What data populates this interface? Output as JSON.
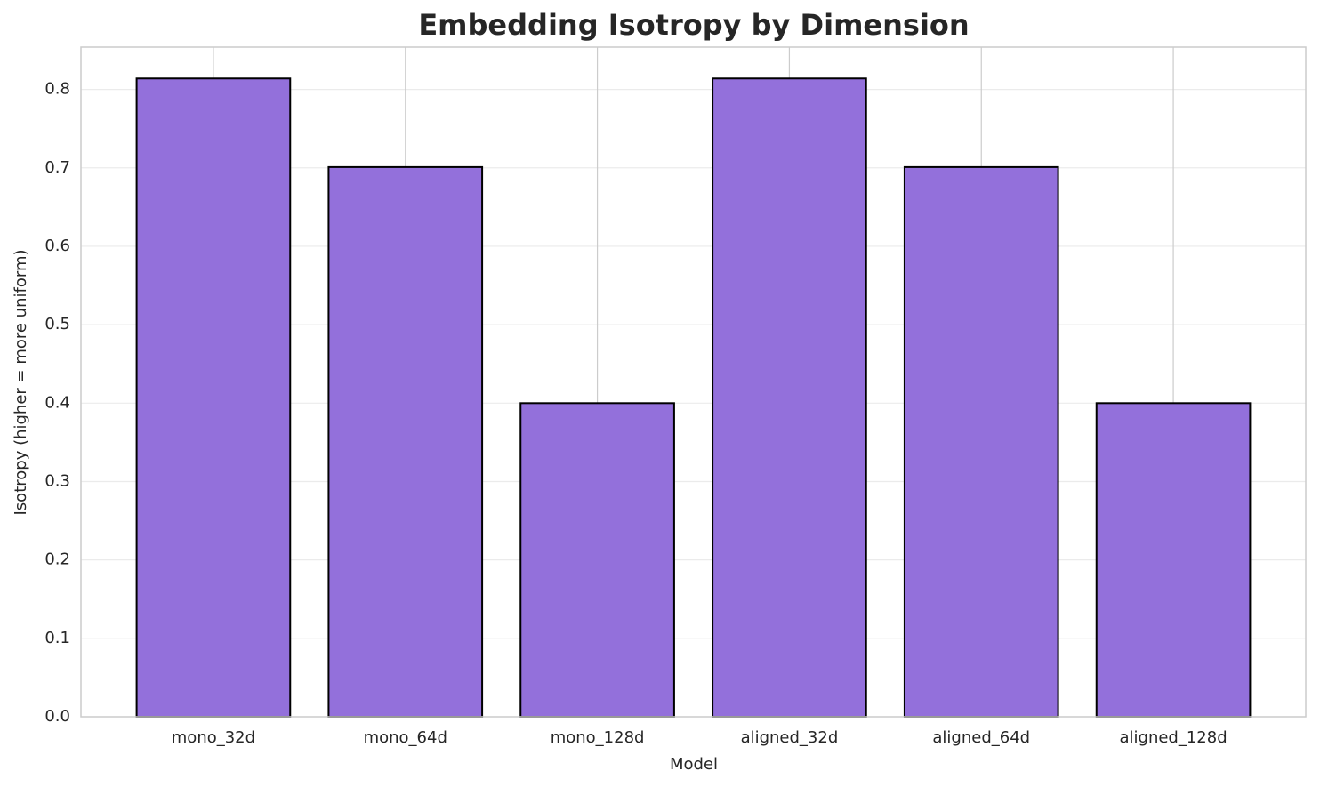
{
  "chart_data": {
    "type": "bar",
    "title": "Embedding Isotropy by Dimension",
    "x_label": "Model",
    "y_label": "Isotropy (higher = more uniform)",
    "categories": [
      "mono_32d",
      "mono_64d",
      "mono_128d",
      "aligned_32d",
      "aligned_64d",
      "aligned_128d"
    ],
    "values": [
      0.814,
      0.701,
      0.4,
      0.814,
      0.701,
      0.4
    ],
    "color": "#9370db",
    "edge_color": "#000000",
    "ylim": [
      0,
      0.854
    ],
    "yticks": [
      {
        "value": 0,
        "label": "0.0"
      },
      0.1,
      0.2,
      0.3,
      0.4,
      0.5,
      0.6,
      0.7,
      0.8
    ],
    "grid": true
  }
}
